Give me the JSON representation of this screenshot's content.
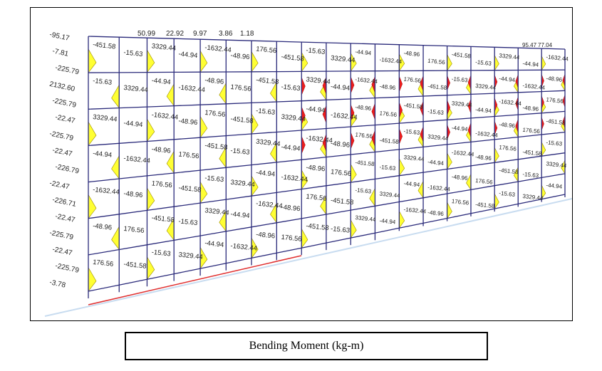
{
  "caption": "Bending Moment (kg-m)",
  "colors": {
    "frame_line": "#2a2a7a",
    "moment_positive": "#ffff33",
    "moment_negative": "#ee1c1c",
    "moment_outline": "#9a8a00",
    "ground_line": "#c8dcf0",
    "support_line": "#e03030"
  },
  "model": {
    "bays": 19,
    "storeys": 7
  },
  "labels": {
    "top_beam_moments": [
      "50.99",
      "22.92",
      "9.97",
      "3.86",
      "1.18"
    ],
    "top_right_moments": [
      "95.47",
      "77.04"
    ],
    "left_column_moments": [
      "-95.17",
      "-7.81",
      "-225.79",
      "2132.60",
      "-225.79",
      "-22.47",
      "-225.79",
      "-22.47",
      "-226.79",
      "-22.47",
      "-226.71",
      "-22.47",
      "-225.79",
      "-22.47",
      "-225.79",
      "-3.78"
    ],
    "beam_moments": [
      "-451.58",
      "-15.63",
      "3329.44",
      "-44.94",
      "-1632.44",
      "-48.96",
      "176.56"
    ]
  }
}
